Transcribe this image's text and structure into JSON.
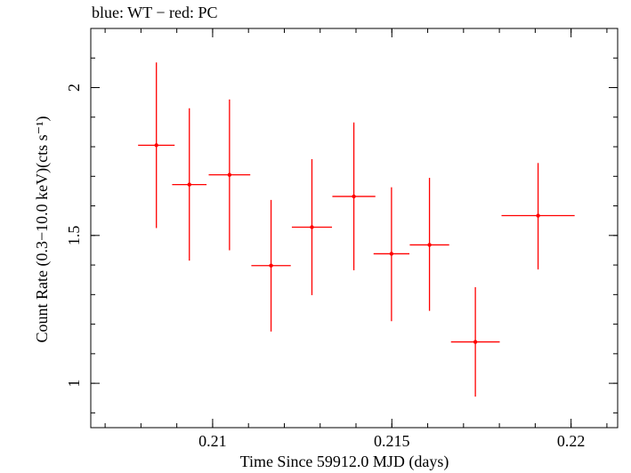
{
  "chart_data": {
    "type": "scatter",
    "title": "blue: WT − red: PC",
    "xlabel": "Time Since 59912.0 MJD (days)",
    "ylabel": "Count Rate (0.3−10.0 keV)(cts s⁻¹)",
    "xlim": [
      0.2066,
      0.2213
    ],
    "ylim": [
      0.85,
      2.2
    ],
    "x_ticks": [
      {
        "value": 0.21,
        "label": "0.21"
      },
      {
        "value": 0.215,
        "label": "0.215"
      },
      {
        "value": 0.22,
        "label": "0.22"
      }
    ],
    "y_ticks": [
      {
        "value": 1,
        "label": "1"
      },
      {
        "value": 1.5,
        "label": "1.5"
      },
      {
        "value": 2,
        "label": "2"
      }
    ],
    "x_minor_step": 0.001,
    "y_minor_step": 0.1,
    "grid": false,
    "colors": {
      "PC": "#ff0000",
      "WT": "#0000ff",
      "axes": "#000000"
    },
    "series": [
      {
        "name": "PC",
        "color": "#ff0000",
        "points": [
          {
            "x": 0.20843,
            "y": 1.805,
            "xerr": 0.00051,
            "ylo": 1.525,
            "yhi": 2.085
          },
          {
            "x": 0.20935,
            "y": 1.672,
            "xerr": 0.00048,
            "ylo": 1.415,
            "yhi": 1.93
          },
          {
            "x": 0.21047,
            "y": 1.705,
            "xerr": 0.00058,
            "ylo": 1.45,
            "yhi": 1.96
          },
          {
            "x": 0.21163,
            "y": 1.398,
            "xerr": 0.00055,
            "ylo": 1.175,
            "yhi": 1.62
          },
          {
            "x": 0.21277,
            "y": 1.528,
            "xerr": 0.00056,
            "ylo": 1.298,
            "yhi": 1.758
          },
          {
            "x": 0.21394,
            "y": 1.632,
            "xerr": 0.0006,
            "ylo": 1.382,
            "yhi": 1.882
          },
          {
            "x": 0.21499,
            "y": 1.438,
            "xerr": 0.0005,
            "ylo": 1.21,
            "yhi": 1.663
          },
          {
            "x": 0.21605,
            "y": 1.468,
            "xerr": 0.00055,
            "ylo": 1.245,
            "yhi": 1.695
          },
          {
            "x": 0.21733,
            "y": 1.14,
            "xerr": 0.00068,
            "ylo": 0.955,
            "yhi": 1.325
          },
          {
            "x": 0.21908,
            "y": 1.567,
            "xerr": 0.00102,
            "ylo": 1.385,
            "yhi": 1.745
          }
        ]
      }
    ]
  }
}
